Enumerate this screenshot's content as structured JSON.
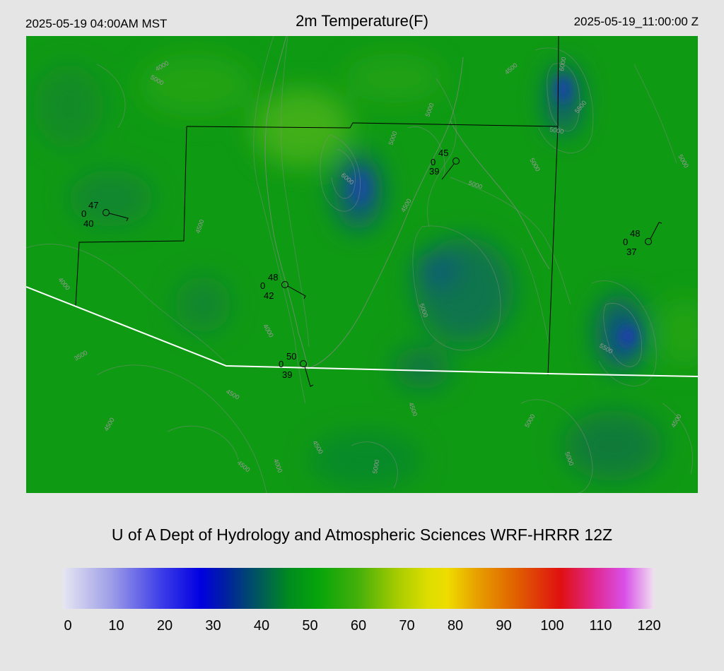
{
  "header": {
    "valid_local": "2025-05-19 04:00AM MST",
    "title": "2m Temperature(F)",
    "valid_utc": "2025-05-19_11:00:00 Z"
  },
  "credit": "U of A Dept of Hydrology and Atmospheric Sciences WRF-HRRR 12Z",
  "colorbar": {
    "ticks": [
      "0",
      "10",
      "20",
      "30",
      "40",
      "50",
      "60",
      "70",
      "80",
      "90",
      "100",
      "110",
      "120"
    ],
    "stops": [
      {
        "value": 0,
        "color": "#e6e6f2"
      },
      {
        "value": 10,
        "color": "#9c9ce8"
      },
      {
        "value": 20,
        "color": "#3c3ce8"
      },
      {
        "value": 28,
        "color": "#0000e0"
      },
      {
        "value": 33,
        "color": "#0020a0"
      },
      {
        "value": 40,
        "color": "#005a5a"
      },
      {
        "value": 46,
        "color": "#008c1e"
      },
      {
        "value": 52,
        "color": "#07a50a"
      },
      {
        "value": 60,
        "color": "#45b00a"
      },
      {
        "value": 68,
        "color": "#a8cc00"
      },
      {
        "value": 74,
        "color": "#dddd00"
      },
      {
        "value": 78,
        "color": "#eedd00"
      },
      {
        "value": 84,
        "color": "#e8a000"
      },
      {
        "value": 92,
        "color": "#e06000"
      },
      {
        "value": 101,
        "color": "#e01010"
      },
      {
        "value": 108,
        "color": "#e02890"
      },
      {
        "value": 114,
        "color": "#d850e8"
      },
      {
        "value": 120,
        "color": "#f0e0f0"
      }
    ]
  },
  "contour_labels": [
    "6000",
    "5500",
    "5000",
    "4500",
    "4000",
    "3500"
  ],
  "stations": [
    {
      "temp": "47",
      "cloud": "0",
      "dew": "40"
    },
    {
      "temp": "45",
      "cloud": "0",
      "dew": "39"
    },
    {
      "temp": "48",
      "cloud": "0",
      "dew": "42"
    },
    {
      "temp": "50",
      "cloud": "0",
      "dew": "39"
    },
    {
      "temp": "48",
      "cloud": "0",
      "dew": "37"
    }
  ]
}
